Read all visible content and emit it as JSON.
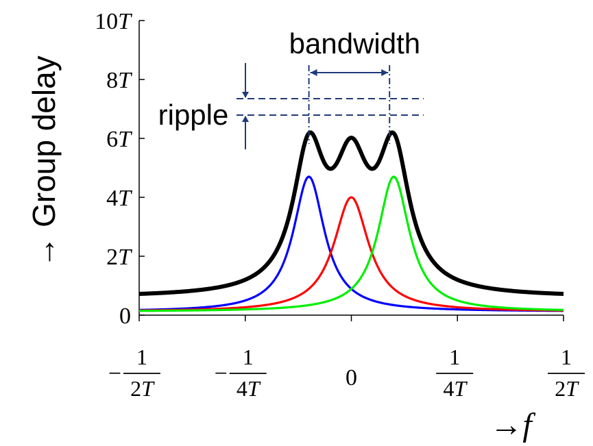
{
  "chart_data": {
    "type": "line",
    "title": "",
    "ylabel": "→ Group delay",
    "xlabel_arrow": "→",
    "xlabel_var": "f",
    "xlim": [
      -0.5,
      0.5
    ],
    "ylim": [
      0,
      10
    ],
    "y_ticks": [
      {
        "value": 0,
        "label": "0"
      },
      {
        "value": 2,
        "coef": "2",
        "unit": "T"
      },
      {
        "value": 4,
        "coef": "4",
        "unit": "T"
      },
      {
        "value": 6,
        "coef": "6",
        "unit": "T"
      },
      {
        "value": 8,
        "coef": "8",
        "unit": "T"
      },
      {
        "value": 10,
        "coef": "10",
        "unit": "T"
      }
    ],
    "x_ticks": [
      {
        "value": -0.5,
        "sign": "−",
        "num": "1",
        "den": "2T"
      },
      {
        "value": -0.25,
        "sign": "−",
        "num": "1",
        "den": "4T"
      },
      {
        "value": 0,
        "label": "0"
      },
      {
        "value": 0.25,
        "sign": "",
        "num": "1",
        "den": "4T"
      },
      {
        "value": 0.5,
        "sign": "",
        "num": "1",
        "den": "2T"
      }
    ],
    "series": [
      {
        "color": "#0000ff",
        "center": -0.1,
        "peak": 4.7,
        "width": 0.045,
        "floor": 0.12
      },
      {
        "color": "#ff0000",
        "center": 0.0,
        "peak": 4.0,
        "width": 0.05,
        "floor": 0.12
      },
      {
        "color": "#00ee00",
        "center": 0.1,
        "peak": 4.7,
        "width": 0.045,
        "floor": 0.12
      },
      {
        "color": "#000000",
        "role": "sum",
        "offset": 0.6
      }
    ],
    "annotations": {
      "bandwidth": {
        "label": "bandwidth",
        "x_range": [
          -0.1,
          0.09
        ]
      },
      "ripple": {
        "label": "ripple",
        "y_range": [
          7.4,
          7.95
        ]
      }
    }
  }
}
